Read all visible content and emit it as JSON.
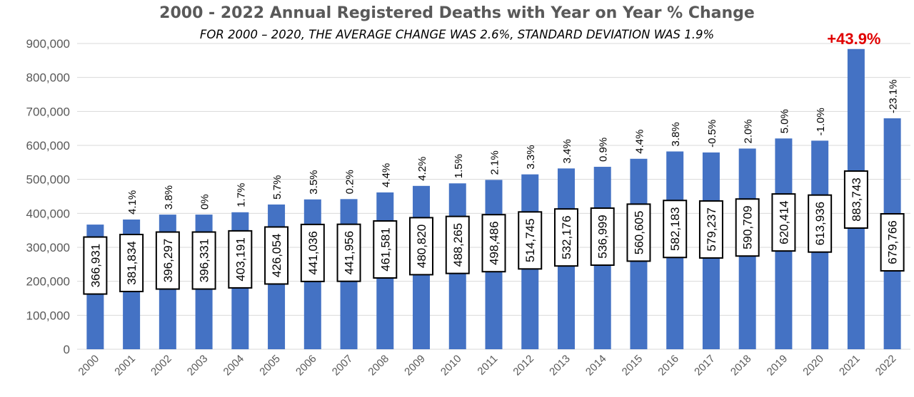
{
  "chart_data": {
    "type": "bar",
    "title": "2000 - 2022 Annual Registered Deaths with Year on Year % Change",
    "subtitle": "FOR 2000 – 2020, THE AVERAGE CHANGE WAS 2.6%, STANDARD DEVIATION WAS 1.9%",
    "xlabel": "",
    "ylabel": "",
    "ylim": [
      0,
      900000
    ],
    "yticks": [
      0,
      100000,
      200000,
      300000,
      400000,
      500000,
      600000,
      700000,
      800000,
      900000
    ],
    "ytick_labels": [
      "0",
      "100,000",
      "200,000",
      "300,000",
      "400,000",
      "500,000",
      "600,000",
      "700,000",
      "800,000",
      "900,000"
    ],
    "grid": true,
    "categories": [
      "2000",
      "2001",
      "2002",
      "2003",
      "2004",
      "2005",
      "2006",
      "2007",
      "2008",
      "2009",
      "2010",
      "2011",
      "2012",
      "2013",
      "2014",
      "2015",
      "2016",
      "2017",
      "2018",
      "2019",
      "2020",
      "2021",
      "2022"
    ],
    "values": [
      366931,
      381834,
      396297,
      396331,
      403191,
      426054,
      441036,
      441956,
      461581,
      480820,
      488265,
      498486,
      514745,
      532176,
      536999,
      560605,
      582183,
      579237,
      590709,
      620414,
      613936,
      883743,
      679766
    ],
    "value_labels": [
      "366,931",
      "381,834",
      "396,297",
      "396,331",
      "403,191",
      "426,054",
      "441,036",
      "441,956",
      "461,581",
      "480,820",
      "488,265",
      "498,486",
      "514,745",
      "532,176",
      "536,999",
      "560,605",
      "582,183",
      "579,237",
      "590,709",
      "620,414",
      "613,936",
      "883,743",
      "679,766"
    ],
    "pct_change_labels": [
      "",
      "4.1%",
      "3.8%",
      "0%",
      "1.7%",
      "5.7%",
      "3.5%",
      "0.2%",
      "4.4%",
      "4.2%",
      "1.5%",
      "2.1%",
      "3.3%",
      "3.4%",
      "0.9%",
      "4.4%",
      "3.8%",
      "-0.5%",
      "2.0%",
      "5.0%",
      "-1.0%",
      "+43.9%",
      "-23.1%"
    ],
    "highlight_index": 21,
    "colors": {
      "bar": "#4472C4",
      "highlight_text": "#E00000",
      "grid": "#D9D9D9",
      "axis_text": "#595959"
    }
  }
}
